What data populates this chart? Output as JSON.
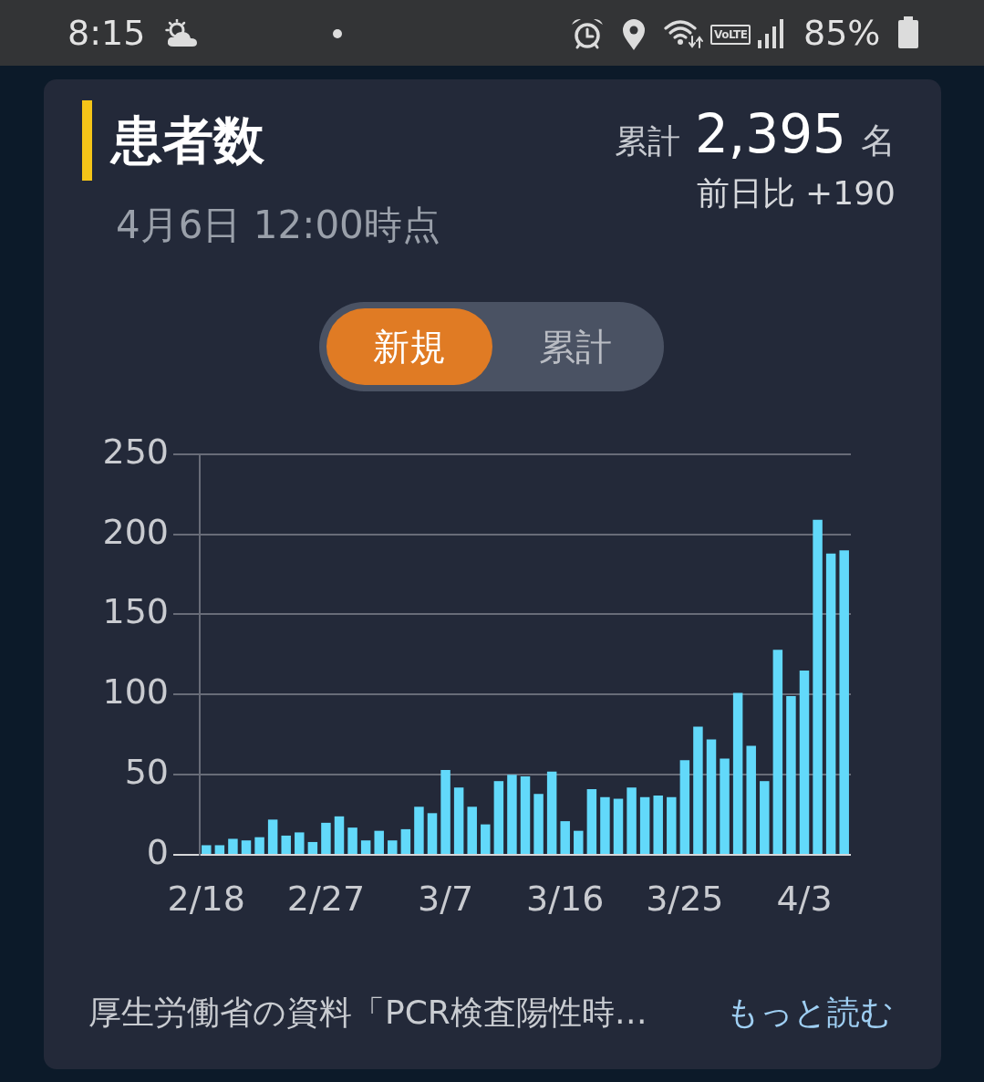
{
  "chart_data": {
    "type": "bar",
    "title": "患者数",
    "subtitle": "4月6日 12:00時点",
    "annotations": [
      "累計",
      "2,395",
      "名",
      "前日比 +190",
      "新規",
      "累計",
      "厚生労働省の資料「PCR検査陽性時…",
      "もっと読む",
      "8:15",
      "VoLTE",
      "85%"
    ],
    "categories": [
      "2/18",
      null,
      null,
      null,
      null,
      null,
      null,
      null,
      null,
      "2/27",
      null,
      null,
      null,
      null,
      null,
      null,
      null,
      null,
      "3/7",
      null,
      null,
      null,
      null,
      null,
      null,
      null,
      null,
      "3/16",
      null,
      null,
      null,
      null,
      null,
      null,
      null,
      null,
      "3/25",
      null,
      null,
      null,
      null,
      null,
      null,
      null,
      null,
      "4/3",
      null,
      null,
      null
    ],
    "values": [
      6,
      6,
      10,
      9,
      11,
      22,
      12,
      14,
      8,
      20,
      24,
      17,
      9,
      15,
      9,
      16,
      30,
      26,
      53,
      42,
      30,
      19,
      46,
      50,
      49,
      38,
      52,
      21,
      15,
      41,
      36,
      35,
      42,
      36,
      37,
      36,
      59,
      80,
      72,
      60,
      101,
      68,
      46,
      128,
      99,
      115,
      209,
      188,
      190
    ],
    "color": "#62d9fa",
    "ylim": [
      0,
      250
    ],
    "yticks": [
      0,
      50,
      100,
      150,
      200,
      250
    ],
    "grid": "y",
    "legend": false
  }
}
